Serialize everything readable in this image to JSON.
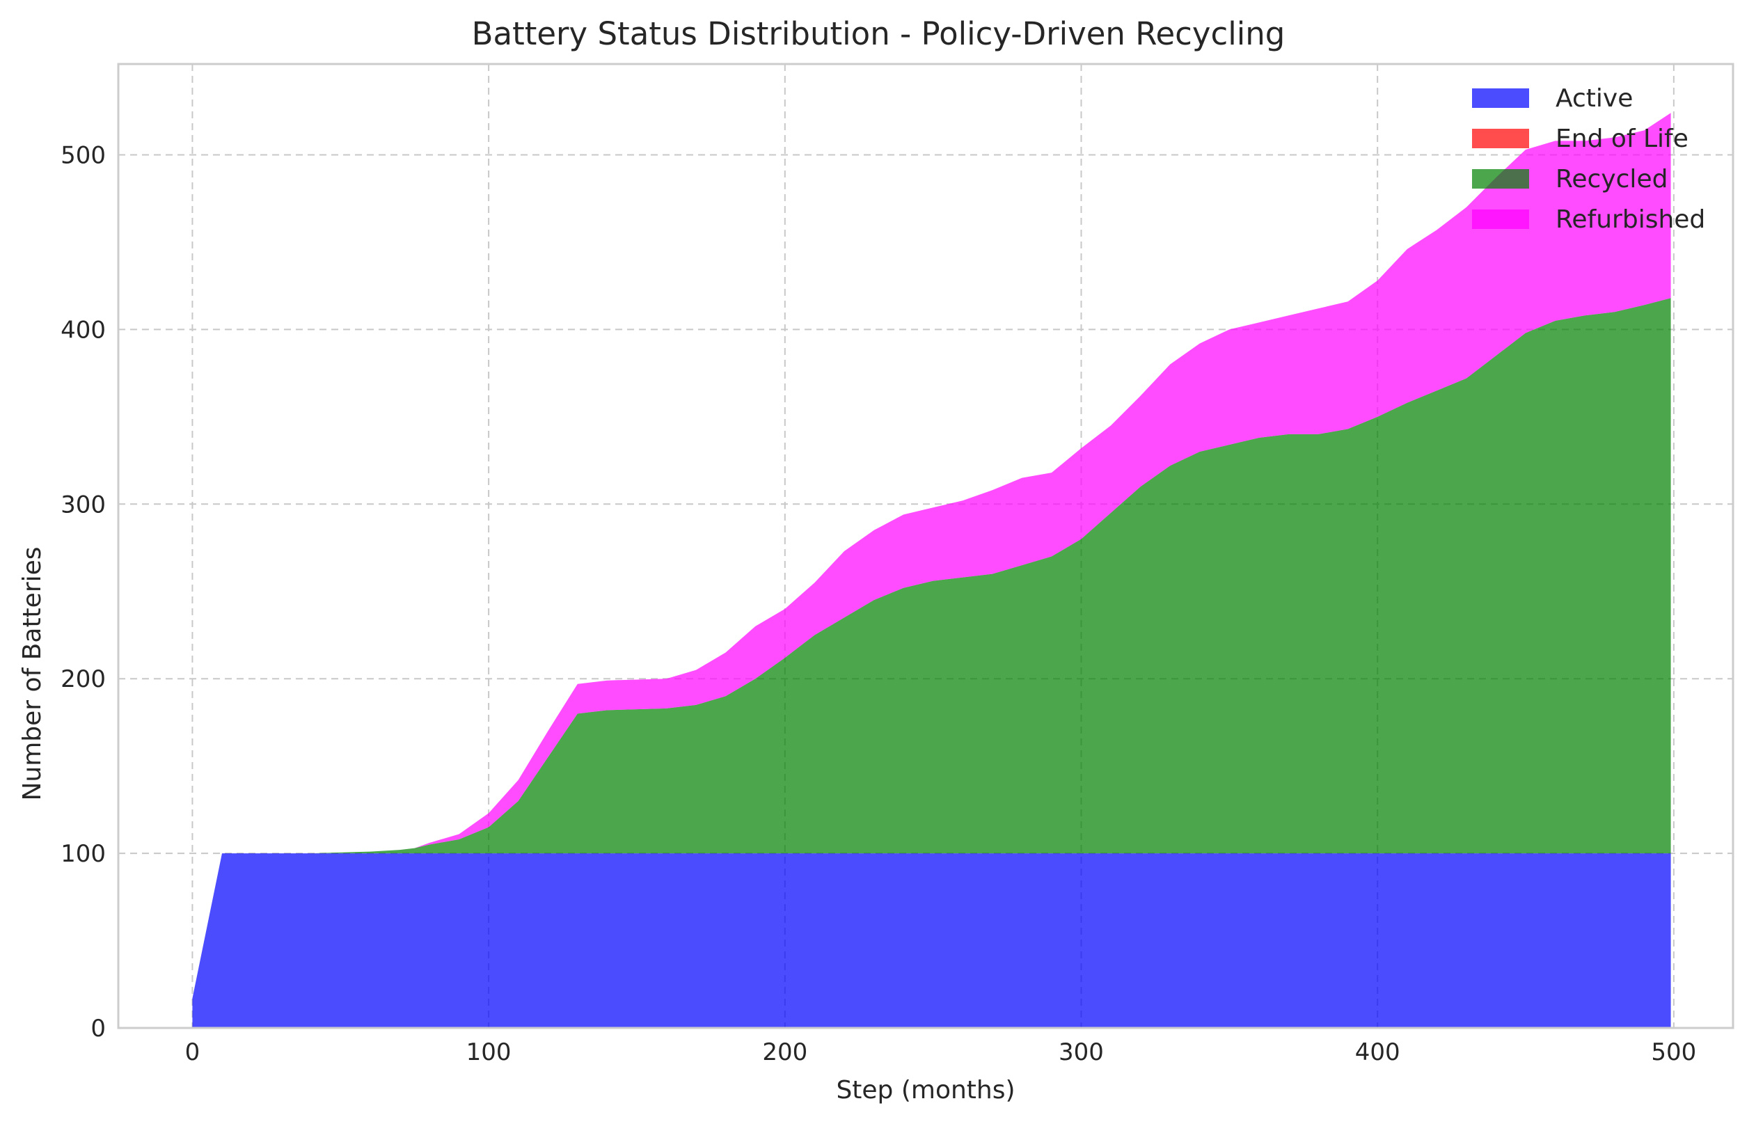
{
  "chart_data": {
    "type": "area",
    "stacked": true,
    "title": "Battery Status Distribution - Policy-Driven Recycling",
    "xlabel": "Step (months)",
    "ylabel": "Number of Batteries",
    "xlim": [
      -25,
      520
    ],
    "ylim": [
      0,
      552
    ],
    "xticks": [
      0,
      100,
      200,
      300,
      400,
      500
    ],
    "yticks": [
      0,
      100,
      200,
      300,
      400,
      500
    ],
    "grid": true,
    "legend_position": "top-right",
    "x": [
      0,
      10,
      20,
      40,
      60,
      70,
      75,
      80,
      90,
      100,
      110,
      120,
      130,
      140,
      160,
      170,
      180,
      190,
      200,
      210,
      220,
      230,
      240,
      250,
      260,
      270,
      280,
      290,
      300,
      310,
      320,
      330,
      340,
      350,
      360,
      370,
      380,
      390,
      400,
      410,
      420,
      430,
      440,
      450,
      460,
      470,
      480,
      490,
      499
    ],
    "series": [
      {
        "name": "Active",
        "color": "#0000ff",
        "values": [
          17,
          100,
          100,
          100,
          100,
          100,
          100,
          100,
          100,
          100,
          100,
          100,
          100,
          100,
          100,
          100,
          100,
          100,
          100,
          100,
          100,
          100,
          100,
          100,
          100,
          100,
          100,
          100,
          100,
          100,
          100,
          100,
          100,
          100,
          100,
          100,
          100,
          100,
          100,
          100,
          100,
          100,
          100,
          100,
          100,
          100,
          100,
          100,
          100
        ]
      },
      {
        "name": "End of Life",
        "color": "#ff0000",
        "values": [
          0,
          0,
          0,
          0,
          0,
          0,
          0,
          0,
          0,
          0,
          0,
          0,
          0,
          0,
          0,
          0,
          0,
          0,
          0,
          0,
          0,
          0,
          0,
          0,
          0,
          0,
          0,
          0,
          0,
          0,
          0,
          0,
          0,
          0,
          0,
          0,
          0,
          0,
          0,
          0,
          0,
          0,
          0,
          0,
          0,
          0,
          0,
          0,
          0
        ]
      },
      {
        "name": "Recycled",
        "color": "#008000",
        "values": [
          0,
          0,
          0,
          0,
          1,
          2,
          3,
          5,
          8,
          15,
          30,
          55,
          80,
          82,
          83,
          85,
          90,
          100,
          112,
          125,
          135,
          145,
          152,
          156,
          158,
          160,
          165,
          170,
          180,
          195,
          210,
          222,
          230,
          234,
          238,
          240,
          240,
          243,
          250,
          258,
          265,
          272,
          285,
          298,
          305,
          308,
          310,
          314,
          318
        ]
      },
      {
        "name": "Refurbished",
        "color": "#ff00ff",
        "values": [
          0,
          0,
          0,
          0,
          0,
          0,
          0,
          1,
          3,
          8,
          12,
          15,
          17,
          17,
          17,
          20,
          25,
          30,
          28,
          30,
          38,
          40,
          42,
          42,
          44,
          48,
          50,
          48,
          52,
          50,
          52,
          58,
          62,
          66,
          66,
          68,
          72,
          73,
          78,
          88,
          92,
          98,
          102,
          105,
          103,
          100,
          100,
          100,
          106
        ]
      }
    ]
  }
}
